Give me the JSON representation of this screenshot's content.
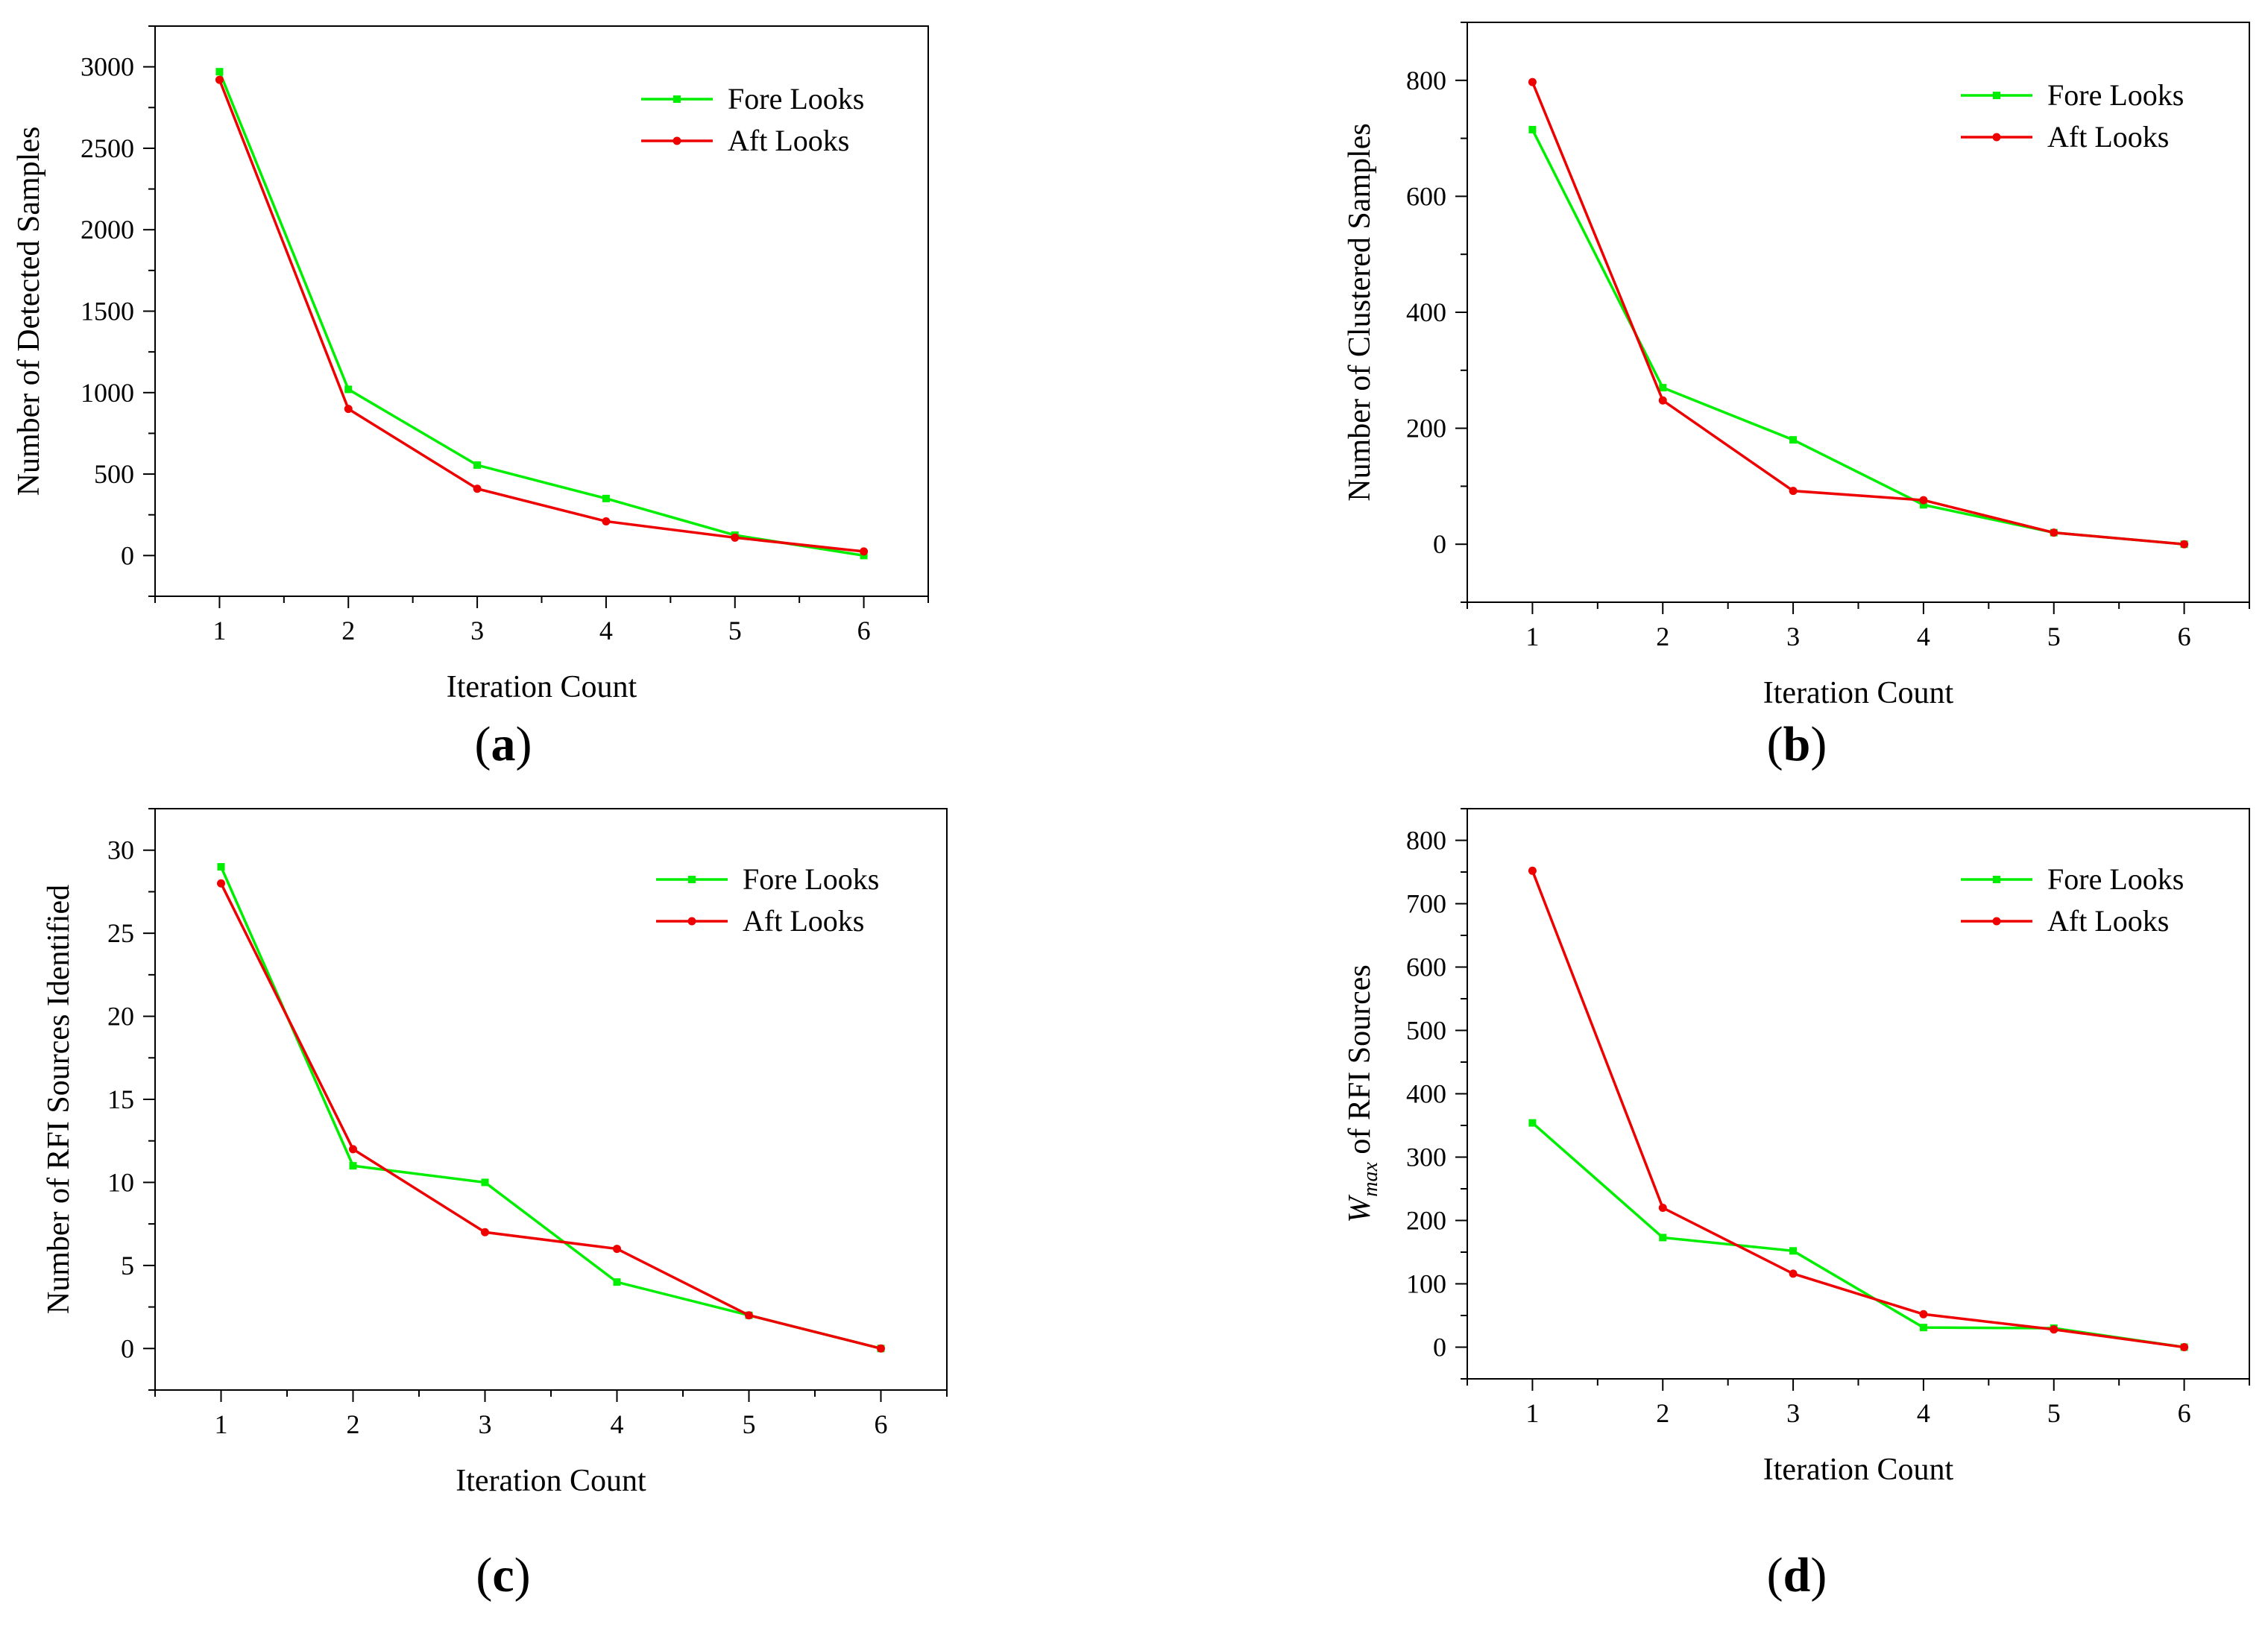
{
  "figure": {
    "captions": [
      "a",
      "b",
      "c",
      "d"
    ]
  },
  "colors": {
    "fore": "#00ee00",
    "aft": "#ee0000"
  },
  "chart_data": [
    {
      "type": "line",
      "panel": "a",
      "xlabel": "Iteration Count",
      "ylabel": "Number of Detected Samples",
      "x": [
        1,
        2,
        3,
        4,
        5,
        6
      ],
      "xlim": [
        0.5,
        6.5
      ],
      "ylim": [
        -250,
        3250
      ],
      "yticks": [
        0,
        500,
        1000,
        1500,
        2000,
        2500,
        3000
      ],
      "legend_position": "top-right",
      "series": [
        {
          "name": "Fore Looks",
          "color": "#00ee00",
          "values": [
            2970,
            1020,
            555,
            350,
            125,
            0
          ]
        },
        {
          "name": "Aft Looks",
          "color": "#ee0000",
          "values": [
            2920,
            900,
            410,
            210,
            110,
            25
          ]
        }
      ]
    },
    {
      "type": "line",
      "panel": "b",
      "xlabel": "Iteration Count",
      "ylabel": "Number of Clustered Samples",
      "x": [
        1,
        2,
        3,
        4,
        5,
        6
      ],
      "xlim": [
        0.5,
        6.5
      ],
      "ylim": [
        -100,
        900
      ],
      "yticks": [
        0,
        200,
        400,
        600,
        800
      ],
      "legend_position": "top-right",
      "series": [
        {
          "name": "Fore Looks",
          "color": "#00ee00",
          "values": [
            715,
            270,
            180,
            68,
            20,
            0
          ]
        },
        {
          "name": "Aft Looks",
          "color": "#ee0000",
          "values": [
            797,
            248,
            92,
            76,
            20,
            0
          ]
        }
      ]
    },
    {
      "type": "line",
      "panel": "c",
      "xlabel": "Iteration Count",
      "ylabel": "Number of RFI Sources Identified",
      "x": [
        1,
        2,
        3,
        4,
        5,
        6
      ],
      "xlim": [
        0.5,
        6.5
      ],
      "ylim": [
        -2.5,
        32.5
      ],
      "yticks": [
        0,
        5,
        10,
        15,
        20,
        25,
        30
      ],
      "legend_position": "top-right",
      "series": [
        {
          "name": "Fore Looks",
          "color": "#00ee00",
          "values": [
            29,
            11,
            10,
            4,
            2,
            0
          ]
        },
        {
          "name": "Aft Looks",
          "color": "#ee0000",
          "values": [
            28,
            12,
            7,
            6,
            2,
            0
          ]
        }
      ]
    },
    {
      "type": "line",
      "panel": "d",
      "xlabel": "Iteration Count",
      "ylabel_main": "W",
      "ylabel_sub": "max",
      "ylabel_rest": " of RFI Sources",
      "x": [
        1,
        2,
        3,
        4,
        5,
        6
      ],
      "xlim": [
        0.5,
        6.5
      ],
      "ylim": [
        -50,
        850
      ],
      "yticks": [
        0,
        100,
        200,
        300,
        400,
        500,
        600,
        700,
        800
      ],
      "legend_position": "top-right",
      "series": [
        {
          "name": "Fore Looks",
          "color": "#00ee00",
          "values": [
            354,
            173,
            152,
            31,
            30,
            0
          ]
        },
        {
          "name": "Aft Looks",
          "color": "#ee0000",
          "values": [
            752,
            220,
            116,
            52,
            28,
            0
          ]
        }
      ]
    }
  ]
}
